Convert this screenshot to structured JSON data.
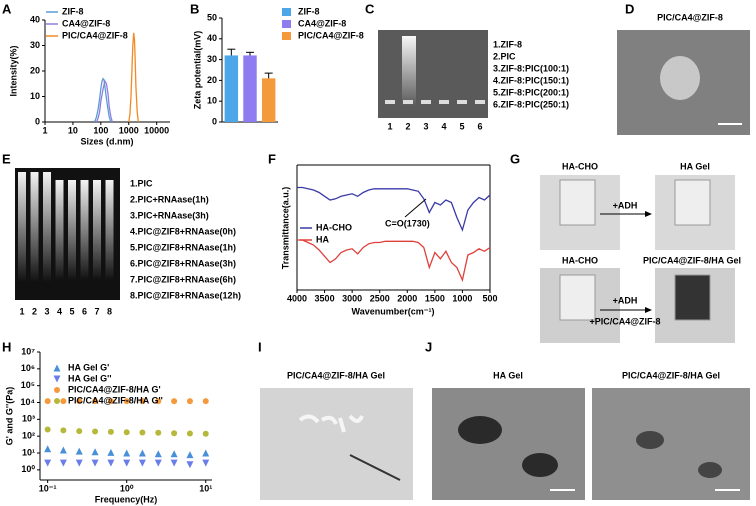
{
  "panels": [
    "A",
    "B",
    "C",
    "D",
    "E",
    "F",
    "G",
    "H",
    "I",
    "J"
  ],
  "chart_data": [
    {
      "type": "line",
      "x_label": "Sizes (d.nm)",
      "y_label": "Intensity(%)",
      "xscale": "log",
      "xlim": [
        1,
        30000
      ],
      "xticks": [
        1,
        10,
        100,
        1000,
        10000
      ],
      "ylim": [
        0,
        40
      ],
      "yticks": [
        0,
        10,
        20,
        30,
        40
      ],
      "series": [
        {
          "name": "ZIF-8",
          "color": "#5b9bd5",
          "x": [
            60,
            70,
            80,
            90,
            100,
            110,
            120,
            130,
            140,
            160,
            180,
            200,
            230
          ],
          "values": [
            0,
            2,
            5,
            9,
            13,
            16,
            17,
            16.5,
            14,
            9,
            5,
            2,
            0
          ]
        },
        {
          "name": "CA4@ZIF-8",
          "color": "#8c7ee0",
          "x": [
            70,
            80,
            90,
            100,
            120,
            140,
            160,
            180,
            200,
            230,
            260
          ],
          "values": [
            0,
            1.5,
            4,
            8,
            13,
            16,
            15,
            11,
            6,
            2,
            0
          ]
        },
        {
          "name": "PIC/CA4@ZIF-8",
          "color": "#f08a24",
          "x": [
            1000,
            1100,
            1200,
            1300,
            1400,
            1500,
            1600,
            1700,
            1800,
            2000,
            2200
          ],
          "values": [
            0,
            3,
            10,
            20,
            30,
            35,
            32,
            24,
            14,
            4,
            0
          ]
        }
      ]
    },
    {
      "type": "bar",
      "y_label": "Zeta potential(mV)",
      "ylim": [
        0,
        50
      ],
      "yticks": [
        0,
        10,
        20,
        30,
        40,
        50
      ],
      "series": [
        {
          "name": "ZIF-8",
          "color": "#4da6e8",
          "values": [
            32
          ],
          "errors": [
            3
          ]
        },
        {
          "name": "CA4@ZIF-8",
          "color": "#8e7cf0",
          "values": [
            32
          ],
          "errors": [
            1.5
          ]
        },
        {
          "name": "PIC/CA4@ZIF-8",
          "color": "#f59a3c",
          "values": [
            21
          ],
          "errors": [
            2.5
          ]
        }
      ]
    },
    {
      "type": "line",
      "x_label": "Wavenumber(cm⁻¹)",
      "y_label": "Transmittance(a.u.)",
      "annotation": "C=O(1730)",
      "xlim": [
        4000,
        500
      ],
      "xticks": [
        4000,
        3500,
        3000,
        2500,
        2000,
        1500,
        1000,
        500
      ],
      "ylim": [
        0,
        100
      ],
      "x": [
        4000,
        3900,
        3800,
        3700,
        3600,
        3500,
        3400,
        3300,
        3200,
        3100,
        3000,
        2900,
        2800,
        2700,
        2600,
        2500,
        2400,
        2300,
        2200,
        2100,
        2000,
        1900,
        1800,
        1700,
        1600,
        1500,
        1400,
        1300,
        1200,
        1100,
        1000,
        900,
        800,
        700,
        600,
        500
      ],
      "series": [
        {
          "name": "HA-CHO",
          "color": "#3a3aa8",
          "values": [
            82,
            82,
            81,
            80,
            78,
            75,
            72,
            73,
            75,
            76,
            77,
            75,
            78,
            80,
            81,
            81,
            81,
            81,
            81,
            81,
            81,
            80,
            79,
            73,
            62,
            70,
            68,
            72,
            70,
            58,
            48,
            64,
            70,
            74,
            72,
            76
          ]
        },
        {
          "name": "HA",
          "color": "#e0403a",
          "values": [
            40,
            40,
            38,
            36,
            32,
            27,
            22,
            25,
            30,
            32,
            33,
            29,
            34,
            37,
            38,
            38,
            39,
            39,
            39,
            39,
            39,
            39,
            38,
            34,
            18,
            30,
            25,
            31,
            22,
            18,
            8,
            28,
            30,
            33,
            31,
            34
          ]
        }
      ]
    },
    {
      "type": "scatter",
      "x_label": "Frequency(Hz)",
      "y_label": "G' and G''(Pa)",
      "xscale": "log",
      "yscale": "log",
      "xlim": [
        0.08,
        12
      ],
      "xticks": [
        {
          "value": 0.1,
          "label": "10⁻¹"
        },
        {
          "value": 1,
          "label": "10⁰"
        },
        {
          "value": 10,
          "label": "10¹"
        }
      ],
      "ylim": [
        0.25,
        10000000
      ],
      "yticks": [
        {
          "value": 1,
          "label": "10⁰"
        },
        {
          "value": 10,
          "label": "10¹"
        },
        {
          "value": 100,
          "label": "10²"
        },
        {
          "value": 1000,
          "label": "10³"
        },
        {
          "value": 10000,
          "label": "10⁴"
        },
        {
          "value": 100000,
          "label": "10⁵"
        },
        {
          "value": 1000000,
          "label": "10⁶"
        },
        {
          "value": 10000000,
          "label": "10⁷"
        }
      ],
      "x": [
        0.1,
        0.158,
        0.251,
        0.398,
        0.631,
        1,
        1.58,
        2.51,
        3.98,
        6.31,
        10
      ],
      "series": [
        {
          "name": "HA Gel G'",
          "color": "#4a90d9",
          "marker": "triangle-up",
          "values": [
            18,
            15,
            13,
            12,
            11,
            10,
            10,
            9,
            9,
            8,
            10
          ]
        },
        {
          "name": "HA Gel G''",
          "color": "#6a7ee8",
          "marker": "triangle-down",
          "values": [
            2.5,
            2.5,
            2.5,
            2.5,
            2.5,
            2.5,
            2.5,
            2.5,
            2.5,
            2,
            2.5
          ]
        },
        {
          "name": "PIC/CA4@ZIF-8/HA G'",
          "color": "#f59a3c",
          "marker": "circle",
          "values": [
            12000,
            12000,
            12000,
            12000,
            12000,
            12000,
            12000,
            12000,
            12000,
            12000,
            12000
          ]
        },
        {
          "name": "PIC/CA4@ZIF-8/HA G''",
          "color": "#b5b83a",
          "marker": "circle",
          "values": [
            250,
            220,
            200,
            190,
            180,
            170,
            165,
            160,
            150,
            145,
            140
          ]
        }
      ]
    }
  ],
  "gel_c": {
    "lanes": [
      "1",
      "2",
      "3",
      "4",
      "5",
      "6"
    ],
    "legend": [
      "1.ZIF-8",
      "2.PIC",
      "3.ZIF-8:PIC(100:1)",
      "4.ZIF-8:PIC(150:1)",
      "5.ZIF-8:PIC(200:1)",
      "6.ZIF-8:PIC(250:1)"
    ]
  },
  "sem_d": {
    "title": "PIC/CA4@ZIF-8"
  },
  "gel_e": {
    "lanes": [
      "1",
      "2",
      "3",
      "4",
      "5",
      "6",
      "7",
      "8"
    ],
    "legend": [
      "1.PIC",
      "2.PIC+RNAase(1h)",
      "3.PIC+RNAase(3h)",
      "4.PIC@ZIF8+RNAase(0h)",
      "5.PIC@ZIF8+RNAase(1h)",
      "6.PIC@ZIF8+RNAase(3h)",
      "7.PIC@ZIF8+RNAase(6h)",
      "8.PIC@ZIF8+RNAase(12h)"
    ]
  },
  "photos_g": {
    "top_left": "HA-CHO",
    "top_right": "HA Gel",
    "top_arrow": "+ADH",
    "bottom_left": "HA-CHO",
    "bottom_right": "PIC/CA4@ZIF-8/HA Gel",
    "bottom_arrow_top": "+ADH",
    "bottom_arrow_bottom": "+PIC/CA4@ZIF-8"
  },
  "photo_i": {
    "title": "PIC/CA4@ZIF-8/HA Gel"
  },
  "sem_j": {
    "titles": [
      "HA Gel",
      "PIC/CA4@ZIF-8/HA Gel"
    ]
  }
}
